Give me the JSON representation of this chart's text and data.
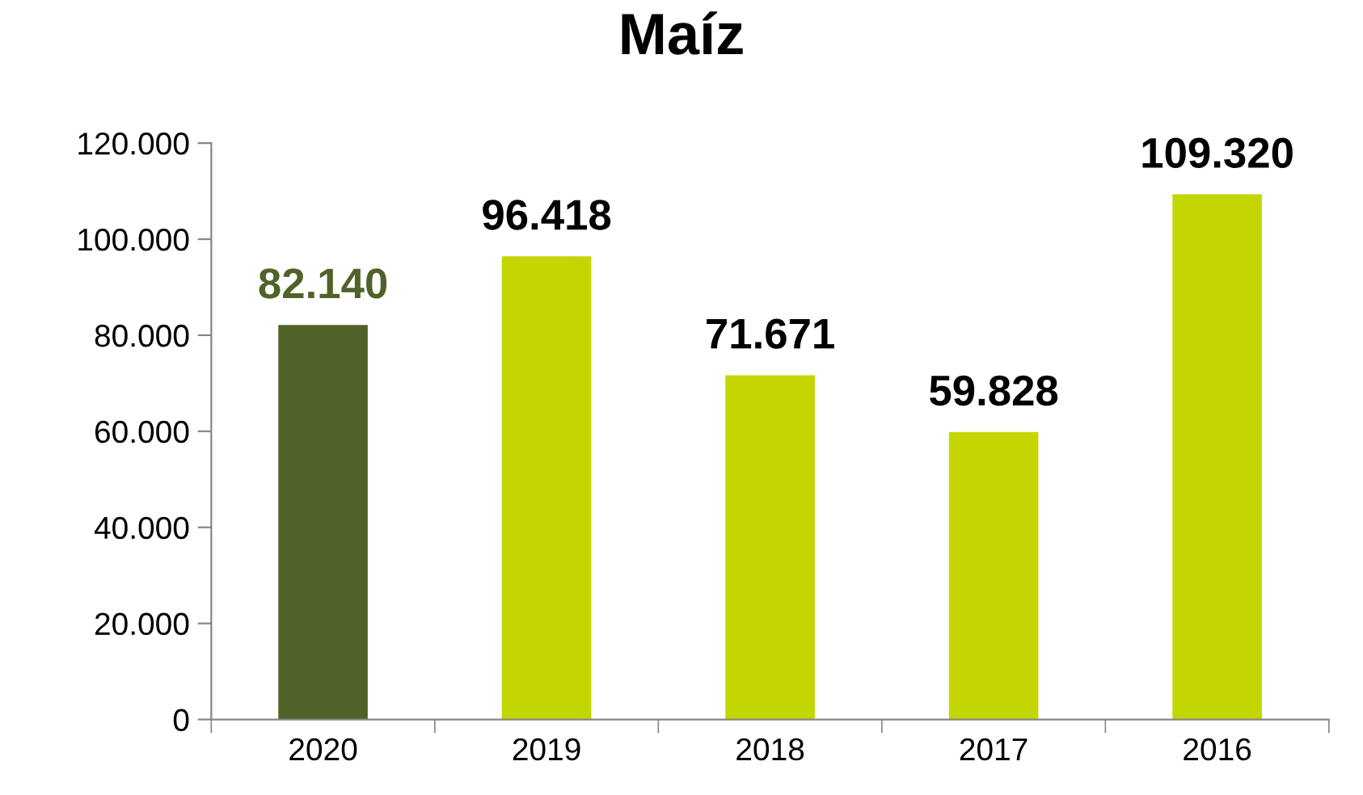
{
  "chart_data": {
    "type": "bar",
    "title": "Maíz",
    "categories": [
      "2020",
      "2019",
      "2018",
      "2017",
      "2016"
    ],
    "values": [
      82140,
      96418,
      71671,
      59828,
      109320
    ],
    "value_labels": [
      "82.140",
      "96.418",
      "71.671",
      "59.828",
      "109.320"
    ],
    "colors": [
      "#4f6228",
      "#c3d600",
      "#c3d600",
      "#c3d600",
      "#c3d600"
    ],
    "ylim": [
      0,
      120000
    ],
    "yticks": [
      0,
      {
        "value": 20000,
        "label": "20.000"
      },
      {
        "value": 40000,
        "label": "40.000"
      },
      {
        "value": 60000,
        "label": "60.000"
      },
      {
        "value": 80000,
        "label": "80.000"
      },
      {
        "value": 100000,
        "label": "100.000"
      },
      {
        "value": 120000,
        "label": "120.000"
      }
    ],
    "grid": false
  }
}
